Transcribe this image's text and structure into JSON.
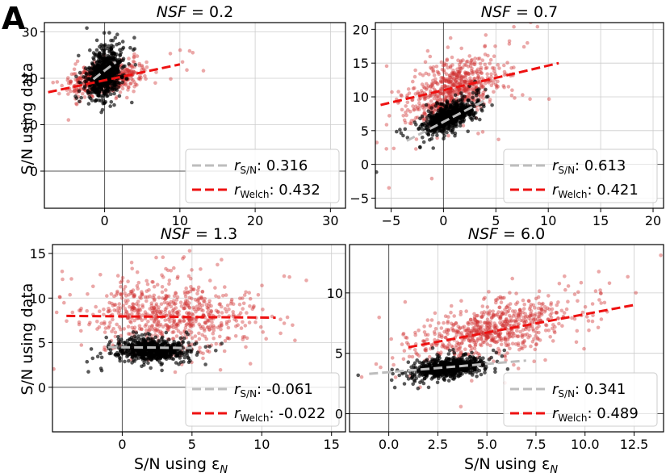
{
  "figure": {
    "panel_label": "A",
    "ylabel": "S/N using data",
    "xlabel": "S/N using ε",
    "xlabel_sub": "N"
  },
  "legend_labels": {
    "sn_main": "r",
    "sn_sub": "S/N",
    "welch_main": "r",
    "welch_sub": "Welch"
  },
  "colors": {
    "sn_points": "#000000",
    "welch_points": "#d03030",
    "sn_line": "#bdbdbd",
    "welch_line": "#ee1111"
  },
  "chart_data": [
    {
      "type": "scatter",
      "title_prefix": "NSF",
      "title_value": "= 0.2",
      "xlim": [
        -8,
        32
      ],
      "ylim": [
        -8,
        32
      ],
      "xticks": [
        "0",
        "10",
        "20",
        "30"
      ],
      "xtick_values": [
        0,
        10,
        20,
        30
      ],
      "yticks": [
        "0",
        "10",
        "20",
        "30"
      ],
      "ytick_values": [
        0,
        10,
        20,
        30
      ],
      "show_xticklabels": true,
      "legend_position": "lower-right",
      "series": [
        {
          "name": "S/N",
          "r": "0.316",
          "cloud": {
            "cx": 0,
            "cy": 21,
            "sx": 1.1,
            "sy": 2.6,
            "rho": 0.32,
            "n": 700
          },
          "fit": {
            "x": [
              -1.5,
              1.5
            ],
            "y": [
              19.8,
              23.5
            ]
          }
        },
        {
          "name": "Welch",
          "r": "0.432",
          "cloud": {
            "cx": 0,
            "cy": 20,
            "sx": 2.3,
            "sy": 1.6,
            "rho": 0.43,
            "n": 600
          },
          "fit": {
            "x": [
              -7.5,
              10
            ],
            "y": [
              17,
              23
            ]
          }
        }
      ]
    },
    {
      "type": "scatter",
      "title_prefix": "NSF",
      "title_value": "= 0.7",
      "xlim": [
        -6.5,
        21
      ],
      "ylim": [
        -6.5,
        21
      ],
      "xticks": [
        "−5",
        "0",
        "5",
        "10",
        "15",
        "20"
      ],
      "xtick_values": [
        -5,
        0,
        5,
        10,
        15,
        20
      ],
      "yticks": [
        "−5",
        "0",
        "5",
        "10",
        "15",
        "20"
      ],
      "ytick_values": [
        -5,
        0,
        5,
        10,
        15,
        20
      ],
      "show_xticklabels": true,
      "legend_position": "lower-right",
      "series": [
        {
          "name": "S/N",
          "r": "0.613",
          "cloud": {
            "cx": 0.5,
            "cy": 7,
            "sx": 1.2,
            "sy": 1.2,
            "rho": 0.61,
            "n": 700
          },
          "fit": {
            "x": [
              -3.5,
              4
            ],
            "y": [
              3.5,
              9.5
            ]
          }
        },
        {
          "name": "Welch",
          "r": "0.421",
          "cloud": {
            "cx": 1,
            "cy": 11,
            "sx": 2.2,
            "sy": 2.3,
            "rho": 0.42,
            "n": 700
          },
          "fit": {
            "x": [
              -6,
              11
            ],
            "y": [
              8.8,
              15
            ]
          }
        }
      ]
    },
    {
      "type": "scatter",
      "title_prefix": "NSF",
      "title_value": "= 1.3",
      "xlim": [
        -5,
        16
      ],
      "ylim": [
        -5,
        16
      ],
      "xticks": [
        "0",
        "5",
        "10",
        "15"
      ],
      "xtick_values": [
        0,
        5,
        10,
        15
      ],
      "yticks": [
        "0",
        "5",
        "10",
        "15"
      ],
      "ytick_values": [
        0,
        5,
        10,
        15
      ],
      "show_xticklabels": true,
      "legend_position": "lower-right",
      "series": [
        {
          "name": "S/N",
          "r": "-0.061",
          "cloud": {
            "cx": 2,
            "cy": 4.2,
            "sx": 1.2,
            "sy": 0.6,
            "rho": -0.06,
            "n": 700
          },
          "fit": {
            "x": [
              -1,
              5
            ],
            "y": [
              4.5,
              4.4
            ]
          }
        },
        {
          "name": "Welch",
          "r": "-0.022",
          "cloud": {
            "cx": 3.5,
            "cy": 8,
            "sx": 2.8,
            "sy": 2.0,
            "rho": -0.02,
            "n": 700
          },
          "fit": {
            "x": [
              -4,
              11
            ],
            "y": [
              8.0,
              7.8
            ]
          }
        }
      ]
    },
    {
      "type": "scatter",
      "title_prefix": "NSF",
      "title_value": "= 6.0",
      "xlim": [
        -2,
        14
      ],
      "ylim": [
        -1.5,
        14
      ],
      "xticks": [
        "0.0",
        "2.5",
        "5.0",
        "7.5",
        "10.0",
        "12.5"
      ],
      "xtick_values": [
        0,
        2.5,
        5,
        7.5,
        10,
        12.5
      ],
      "yticks": [
        "0",
        "5",
        "10"
      ],
      "ytick_values": [
        0,
        5,
        10
      ],
      "show_xticklabels": true,
      "legend_position": "lower-right",
      "series": [
        {
          "name": "S/N",
          "r": "0.341",
          "cloud": {
            "cx": 3,
            "cy": 3.8,
            "sx": 0.9,
            "sy": 0.4,
            "rho": 0.34,
            "n": 700
          },
          "fit": {
            "x": [
              -1,
              7
            ],
            "y": [
              3.3,
              4.4
            ]
          }
        },
        {
          "name": "Welch",
          "r": "0.489",
          "cloud": {
            "cx": 5.5,
            "cy": 7,
            "sx": 2.0,
            "sy": 1.3,
            "rho": 0.49,
            "n": 700
          },
          "fit": {
            "x": [
              1,
              12.5
            ],
            "y": [
              5.5,
              9.0
            ]
          }
        }
      ]
    }
  ]
}
